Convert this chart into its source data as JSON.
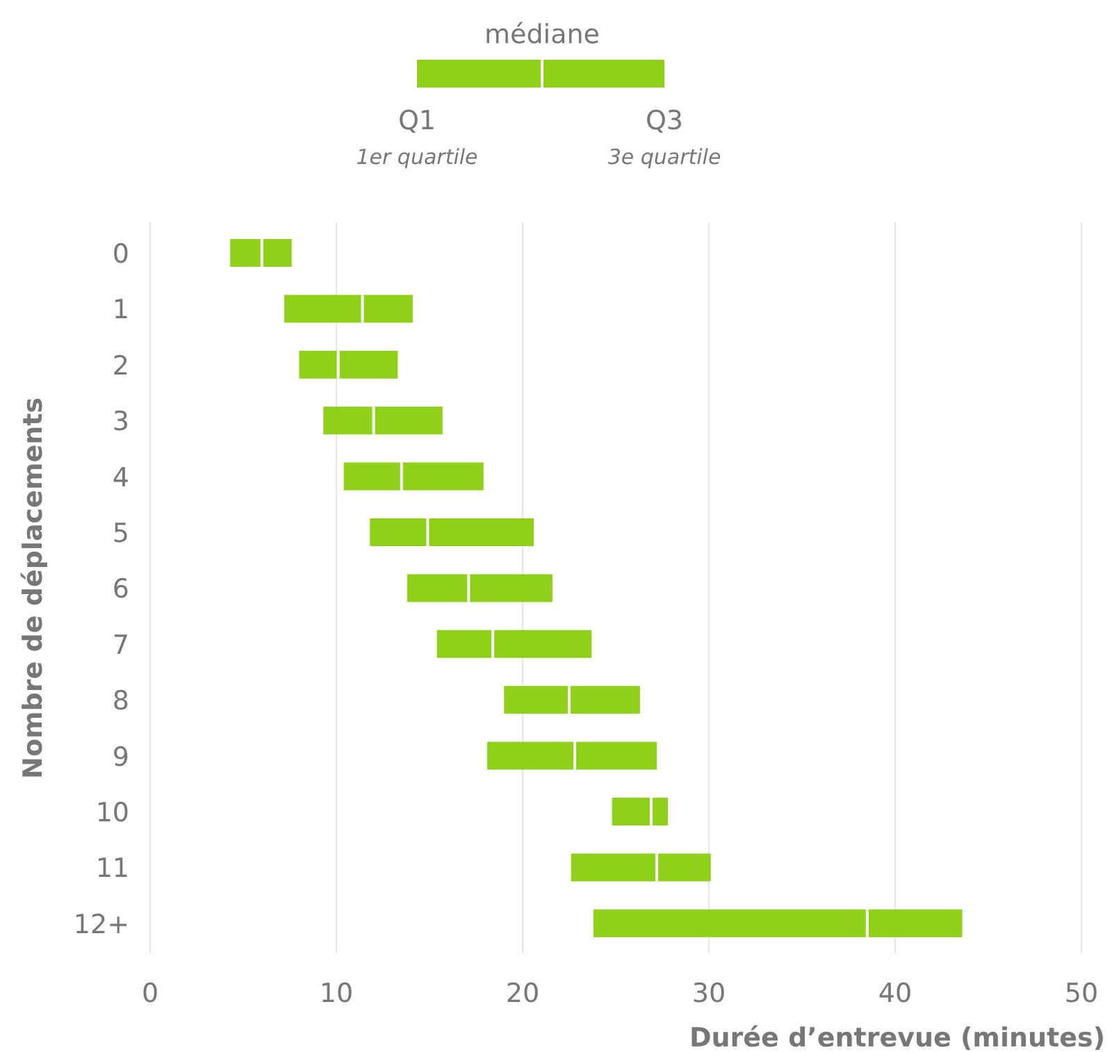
{
  "chart_data": {
    "type": "box",
    "orientation": "horizontal",
    "xlabel": "Durée d’entrevue (minutes)",
    "ylabel": "Nombre de déplacements",
    "categories": [
      "0",
      "1",
      "2",
      "3",
      "4",
      "5",
      "6",
      "7",
      "8",
      "9",
      "10",
      "11",
      "12+"
    ],
    "color": "#8fd01b",
    "boxes": [
      {
        "low": 4.3,
        "q1": 4.3,
        "median": 6.0,
        "q3": 7.6,
        "high": 7.6
      },
      {
        "low": 7.2,
        "q1": 7.2,
        "median": 11.4,
        "q3": 14.1,
        "high": 14.1
      },
      {
        "low": 8.0,
        "q1": 8.0,
        "median": 10.1,
        "q3": 13.3,
        "high": 13.3
      },
      {
        "low": 9.3,
        "q1": 9.3,
        "median": 12.0,
        "q3": 15.7,
        "high": 15.7
      },
      {
        "low": 10.4,
        "q1": 10.4,
        "median": 13.5,
        "q3": 17.9,
        "high": 17.9
      },
      {
        "low": 11.8,
        "q1": 11.8,
        "median": 14.9,
        "q3": 20.6,
        "high": 20.6
      },
      {
        "low": 13.8,
        "q1": 13.8,
        "median": 17.1,
        "q3": 21.6,
        "high": 21.6
      },
      {
        "low": 15.4,
        "q1": 15.4,
        "median": 18.4,
        "q3": 23.7,
        "high": 23.7
      },
      {
        "low": 19.0,
        "q1": 19.0,
        "median": 22.5,
        "q3": 26.3,
        "high": 26.3
      },
      {
        "low": 18.1,
        "q1": 18.1,
        "median": 22.8,
        "q3": 27.2,
        "high": 27.2
      },
      {
        "low": 24.8,
        "q1": 24.8,
        "median": 26.9,
        "q3": 27.8,
        "high": 27.8
      },
      {
        "low": 22.6,
        "q1": 22.6,
        "median": 27.2,
        "q3": 30.1,
        "high": 30.1
      },
      {
        "low": 23.8,
        "q1": 23.8,
        "median": 38.5,
        "q3": 43.6,
        "high": 43.6
      }
    ],
    "xlim": [
      0,
      50
    ],
    "xticks": [
      0,
      10,
      20,
      30,
      40,
      50
    ],
    "grid": "x",
    "annotations": [
      "médiane",
      "Q1",
      "Q3",
      "1er quartile",
      "3e quartile"
    ]
  }
}
